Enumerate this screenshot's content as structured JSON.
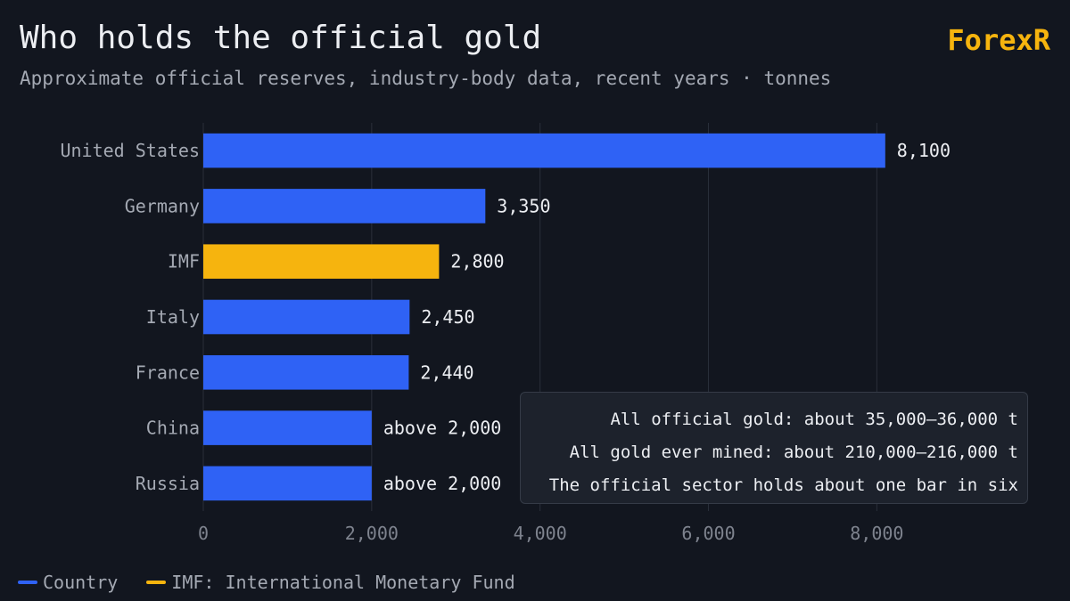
{
  "header": {
    "title": "Who holds the official gold",
    "subtitle": "Approximate official reserves, industry-body data, recent years · tonnes",
    "brand": "ForexR"
  },
  "colors": {
    "background": "#12161f",
    "country": "#2f62f5",
    "imf": "#f6b40e",
    "grid": "#2a2f3a",
    "brand": "#f6b40e"
  },
  "chart_data": {
    "type": "bar",
    "orientation": "horizontal",
    "categories": [
      "United States",
      "Germany",
      "IMF",
      "Italy",
      "France",
      "China",
      "Russia"
    ],
    "values": [
      8100,
      3350,
      2800,
      2450,
      2440,
      2000,
      2000
    ],
    "value_labels": [
      "8,100",
      "3,350",
      "2,800",
      "2,450",
      "2,440",
      "above 2,000",
      "above 2,000"
    ],
    "groups": [
      "country",
      "country",
      "imf",
      "country",
      "country",
      "country",
      "country"
    ],
    "xlim": [
      0,
      9500
    ],
    "xticks": [
      0,
      2000,
      4000,
      6000,
      8000
    ],
    "xtick_labels": [
      "0",
      "2,000",
      "4,000",
      "6,000",
      "8,000"
    ],
    "grid": "vertical",
    "unit": "tonnes",
    "legend_position": "bottom-left"
  },
  "legend": [
    {
      "label": "Country",
      "color_key": "country"
    },
    {
      "label": "IMF: International Monetary Fund",
      "color_key": "imf"
    }
  ],
  "notes": [
    "All official gold: about 35,000–36,000 t",
    "All gold ever mined: about 210,000–216,000 t",
    "The official sector holds about one bar in six"
  ]
}
